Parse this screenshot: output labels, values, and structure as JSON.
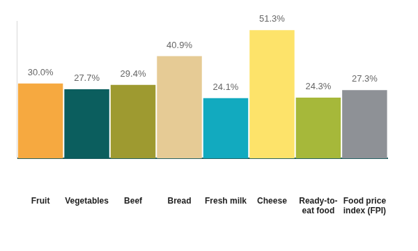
{
  "chart_data": {
    "type": "bar",
    "categories": [
      "Fruit",
      "Vegetables",
      "Beef",
      "Bread",
      "Fresh milk",
      "Cheese",
      "Ready-to-eat food",
      "Food price index (FPI)"
    ],
    "values": [
      30.0,
      27.7,
      29.4,
      40.9,
      24.1,
      51.3,
      24.3,
      27.3
    ],
    "value_labels": [
      "30.0%",
      "27.7%",
      "29.4%",
      "40.9%",
      "24.1%",
      "51.3%",
      "24.3%",
      "27.3%"
    ],
    "colors": [
      "#f6a940",
      "#0b5e5e",
      "#9e9a30",
      "#e6cb95",
      "#12aabf",
      "#fde36a",
      "#a6b83a",
      "#8e9196"
    ],
    "ylim": [
      0,
      55
    ],
    "yticks": [],
    "grid": false,
    "data_labels": true,
    "tick_labels": "x"
  }
}
